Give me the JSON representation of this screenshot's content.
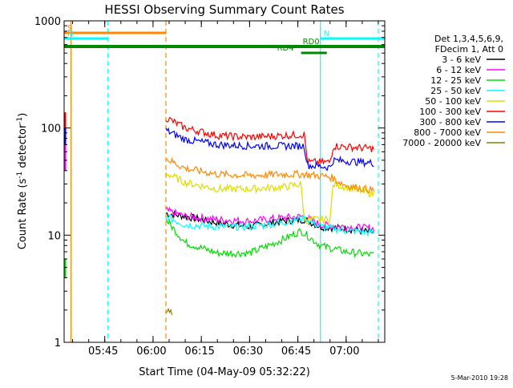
{
  "chart_data": {
    "type": "line",
    "title": "HESSI Observing Summary Count Rates",
    "xlabel": "Start Time (04-May-09 05:32:22)",
    "ylabel_parts": [
      "Count Rate (s",
      "-1",
      " detector",
      "-1",
      ")"
    ],
    "yscale": "log",
    "ylim": [
      1,
      1000
    ],
    "yticks": [
      "1",
      "10",
      "100",
      "1000"
    ],
    "xlim": [
      "05:32:22",
      "07:12:00"
    ],
    "xticks": [
      "05:45",
      "06:00",
      "06:15",
      "06:30",
      "06:45",
      "07:00"
    ],
    "grid": false,
    "legend_position": "right",
    "legend_header": [
      "Det 1,3,4,5,6,9,",
      "FDecim 1, Att 0"
    ],
    "series": [
      {
        "name": "3 - 6 keV",
        "color": "#000000",
        "x": [
          "06:04",
          "06:10",
          "06:20",
          "06:30",
          "06:40",
          "06:47",
          "06:52",
          "07:00",
          "07:09"
        ],
        "y": [
          16,
          15,
          13,
          12,
          13.5,
          14,
          12,
          11.5,
          10.5
        ]
      },
      {
        "name": "6 - 12 keV",
        "color": "#ff00ff",
        "x": [
          "06:04",
          "06:10",
          "06:20",
          "06:30",
          "06:40",
          "06:47",
          "06:52",
          "07:00",
          "07:09"
        ],
        "y": [
          17,
          15,
          14,
          13.5,
          14.5,
          15,
          12.5,
          12,
          11.5
        ]
      },
      {
        "name": "12 - 25 keV",
        "color": "#00dd00",
        "x": [
          "06:04",
          "06:10",
          "06:20",
          "06:30",
          "06:40",
          "06:46",
          "06:52",
          "07:00",
          "07:09"
        ],
        "y": [
          14,
          8.5,
          6.8,
          6.8,
          9,
          11,
          8,
          7,
          6.5
        ]
      },
      {
        "name": "25 - 50 keV",
        "color": "#00ffff",
        "x": [
          "06:04",
          "06:10",
          "06:20",
          "06:30",
          "06:40",
          "06:47",
          "06:52",
          "07:00",
          "07:09"
        ],
        "y": [
          15,
          12.5,
          12,
          12,
          13,
          14.5,
          12,
          11,
          10.5
        ]
      },
      {
        "name": "50 - 100 keV",
        "color": "#dddd00",
        "x": [
          "06:04",
          "06:10",
          "06:20",
          "06:30",
          "06:40",
          "06:46",
          "06:47",
          "06:55",
          "06:56",
          "07:09"
        ],
        "y": [
          38,
          31,
          27,
          27,
          28,
          30,
          14,
          14,
          30,
          24
        ]
      },
      {
        "name": "100 - 300 keV",
        "color": "#ff0000",
        "x": [
          "06:04",
          "06:10",
          "06:20",
          "06:30",
          "06:40",
          "06:47",
          "06:48",
          "06:55",
          "06:56",
          "07:09"
        ],
        "y": [
          125,
          100,
          85,
          82,
          85,
          87,
          48,
          48,
          68,
          64
        ]
      },
      {
        "name": "300 - 800 keV",
        "color": "#0000ff",
        "x": [
          "06:04",
          "06:10",
          "06:20",
          "06:30",
          "06:40",
          "06:47",
          "06:48",
          "06:55",
          "06:56",
          "07:09"
        ],
        "y": [
          95,
          78,
          70,
          68,
          68,
          68,
          45,
          43,
          50,
          47
        ]
      },
      {
        "name": "800 - 7000 keV",
        "color": "#ff8800",
        "x": [
          "06:04",
          "06:10",
          "06:20",
          "06:30",
          "06:40",
          "06:47",
          "06:55",
          "07:00",
          "07:09"
        ],
        "y": [
          52,
          42,
          37,
          36,
          37,
          37,
          35,
          29,
          26
        ]
      },
      {
        "name": "7000 - 20000 keV",
        "color": "#808000",
        "x": [
          "06:04",
          "06:06"
        ],
        "y": [
          1.9,
          1.9
        ]
      }
    ],
    "flag_bars": [
      {
        "label": "S",
        "color": "#ff8800",
        "x": [
          "05:32:22",
          "06:04"
        ],
        "level": 1
      },
      {
        "label": "N",
        "color": "#00ffff",
        "x": [
          "05:32:22",
          "05:46"
        ],
        "level": 2
      },
      {
        "label": "N",
        "color": "#00ffff",
        "x": [
          "06:52",
          "07:12"
        ],
        "level": 2
      },
      {
        "label": "",
        "color": "#008800",
        "x": [
          "05:32:22",
          "07:12"
        ],
        "level": 3,
        "thick": true
      },
      {
        "label": "RD0",
        "color": "#008800",
        "x": [
          "06:46",
          "06:55"
        ],
        "level": 3
      },
      {
        "label": "RD4",
        "color": "#008800",
        "x": [
          "06:46",
          "06:54"
        ],
        "level": 4
      }
    ],
    "vlines": [
      {
        "x": "05:34:30",
        "color": "#ff8800",
        "style": "solid"
      },
      {
        "x": "05:46:00",
        "color": "#00ffff",
        "style": "dashed"
      },
      {
        "x": "06:04:00",
        "color": "#ff8800",
        "style": "dashed"
      },
      {
        "x": "06:52:00",
        "color": "#00ffff",
        "style": "solid"
      },
      {
        "x": "07:10:00",
        "color": "#00ffff",
        "style": "dashed"
      }
    ]
  },
  "footer_text": "5-Mar-2010 19:28"
}
